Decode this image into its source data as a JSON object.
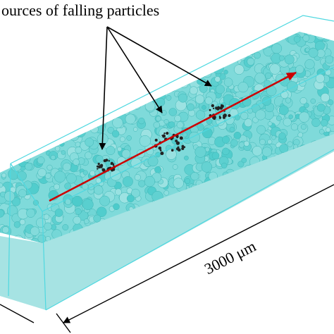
{
  "annotation": "ources of falling particles",
  "dimension": {
    "label": "3000 μm"
  }
}
